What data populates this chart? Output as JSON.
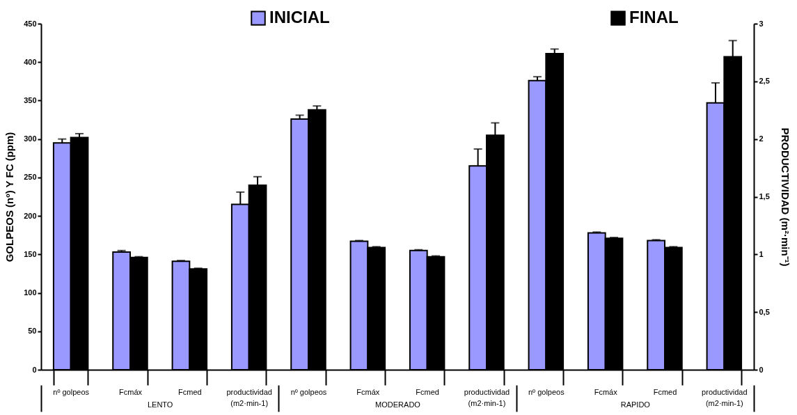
{
  "chart_data": {
    "type": "bar",
    "categories": [
      "nº golpeos",
      "Fcmáx",
      "Fcmed",
      "productividad\n(m2·min-1)",
      "nº golpeos",
      "Fcmáx",
      "Fcmed",
      "productividad\n(m2·min-1)",
      "nº golpeos",
      "Fcmáx",
      "Fcmed",
      "productividad\n(m2·min-1)"
    ],
    "series": [
      {
        "name": "INICIAL",
        "color": "#9999ff",
        "values": [
          295,
          153,
          141,
          215,
          326,
          167,
          155,
          265,
          376,
          178,
          168,
          347
        ],
        "errors": [
          [
            295,
            300
          ],
          [
            153,
            155
          ],
          [
            141,
            142
          ],
          [
            215,
            231
          ],
          [
            326,
            331
          ],
          [
            167,
            168
          ],
          [
            155,
            156
          ],
          [
            265,
            287
          ],
          [
            376,
            381
          ],
          [
            178,
            179
          ],
          [
            168,
            169
          ],
          [
            347,
            373
          ]
        ]
      },
      {
        "name": "FINAL",
        "color": "#000000",
        "values": [
          302,
          146,
          131,
          240,
          338,
          159,
          147,
          305,
          411,
          171,
          159,
          407
        ],
        "errors": [
          [
            302,
            307
          ],
          [
            146,
            147
          ],
          [
            131,
            132
          ],
          [
            240,
            251
          ],
          [
            338,
            343
          ],
          [
            159,
            160
          ],
          [
            147,
            148
          ],
          [
            305,
            321
          ],
          [
            411,
            417
          ],
          [
            171,
            172
          ],
          [
            159,
            160
          ],
          [
            407,
            428
          ]
        ]
      }
    ],
    "ylabel": "GOLPEOS (nº) Y FC (ppm)",
    "y2label": "PRODUCTIVIDAD (m²·min⁻¹)",
    "ylim": [
      0,
      450
    ],
    "yticks": [
      0,
      50,
      100,
      150,
      200,
      250,
      300,
      350,
      400,
      450
    ],
    "y2lim": [
      0,
      3
    ],
    "y2ticks": [
      0,
      {
        "value": 0.5,
        "label": "0,5"
      },
      1,
      {
        "value": 1.5,
        "label": "1,5"
      },
      2,
      {
        "value": 2.5,
        "label": "2,5"
      },
      3
    ],
    "annotations": [
      "LENTO",
      "MODERADO",
      "RAPIDO"
    ],
    "legend": "top",
    "grid": false
  }
}
